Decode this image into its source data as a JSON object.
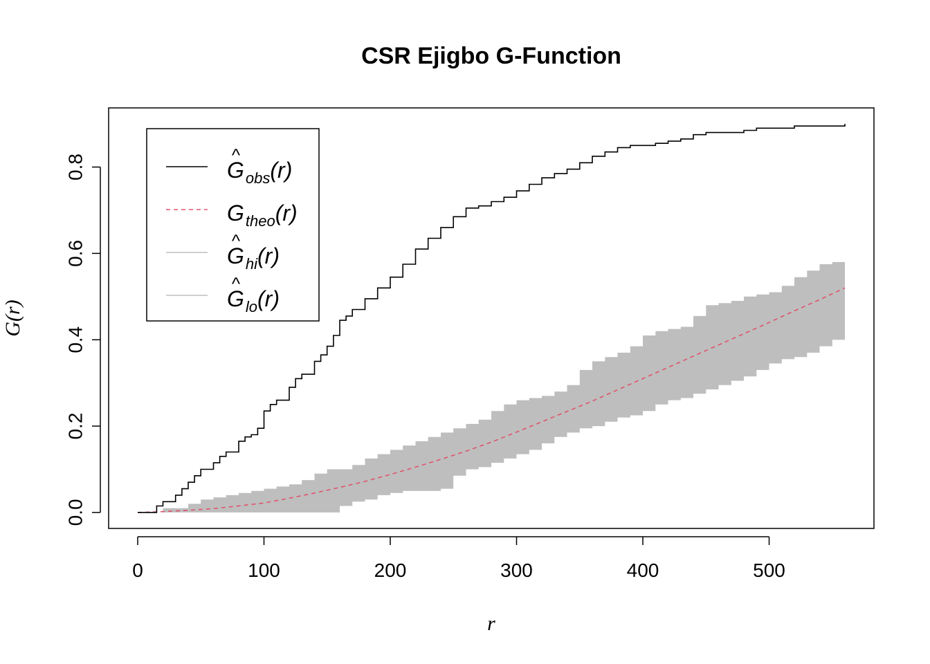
{
  "chart_data": {
    "type": "line",
    "title": "CSR Ejigbo G-Function",
    "xlabel": "r",
    "ylabel_main": "G",
    "ylabel_arg": "(r)",
    "xlim": [
      -23,
      583
    ],
    "ylim": [
      -0.037,
      0.937
    ],
    "xticks": [
      0,
      100,
      200,
      300,
      400,
      500
    ],
    "xtick_labels": [
      "0",
      "100",
      "200",
      "300",
      "400",
      "500"
    ],
    "yticks": [
      0.0,
      0.2,
      0.4,
      0.6,
      0.8
    ],
    "ytick_labels": [
      "0.0",
      "0.2",
      "0.4",
      "0.6",
      "0.8"
    ],
    "legend_position": "top-left",
    "legend": [
      {
        "main": "G",
        "hat": "^",
        "sub": "obs",
        "arg": "(r)",
        "style": "solid",
        "color": "#000000"
      },
      {
        "main": "G",
        "hat": "",
        "sub": "theo",
        "arg": "(r)",
        "style": "dashed",
        "color": "#DF536B"
      },
      {
        "main": "G",
        "hat": "^",
        "sub": "hi",
        "arg": "(r)",
        "style": "solid",
        "color": "#BEBEBE"
      },
      {
        "main": "G",
        "hat": "^",
        "sub": "lo",
        "arg": "(r)",
        "style": "solid",
        "color": "#BEBEBE"
      }
    ],
    "series": [
      {
        "name": "obs",
        "color": "#000000",
        "x": [
          0,
          10,
          15,
          20,
          30,
          35,
          40,
          45,
          50,
          60,
          65,
          70,
          80,
          85,
          90,
          95,
          100,
          105,
          110,
          120,
          125,
          130,
          140,
          145,
          150,
          155,
          160,
          165,
          170,
          180,
          190,
          200,
          210,
          220,
          230,
          240,
          250,
          260,
          270,
          280,
          290,
          300,
          310,
          320,
          330,
          340,
          350,
          360,
          370,
          380,
          390,
          400,
          410,
          420,
          430,
          440,
          450,
          460,
          480,
          490,
          510,
          520,
          540,
          560
        ],
        "y": [
          0.0,
          0.0,
          0.015,
          0.025,
          0.04,
          0.055,
          0.07,
          0.085,
          0.1,
          0.115,
          0.13,
          0.14,
          0.165,
          0.175,
          0.18,
          0.195,
          0.235,
          0.25,
          0.26,
          0.29,
          0.31,
          0.32,
          0.35,
          0.365,
          0.385,
          0.41,
          0.445,
          0.455,
          0.47,
          0.495,
          0.52,
          0.545,
          0.575,
          0.61,
          0.635,
          0.66,
          0.685,
          0.705,
          0.71,
          0.72,
          0.73,
          0.745,
          0.76,
          0.775,
          0.785,
          0.795,
          0.81,
          0.825,
          0.835,
          0.845,
          0.85,
          0.85,
          0.855,
          0.86,
          0.865,
          0.875,
          0.88,
          0.88,
          0.885,
          0.89,
          0.89,
          0.895,
          0.895,
          0.9
        ]
      },
      {
        "name": "theo",
        "color": "#DF536B",
        "x": [
          0,
          20,
          40,
          60,
          80,
          100,
          120,
          140,
          160,
          180,
          200,
          220,
          240,
          260,
          280,
          300,
          320,
          340,
          360,
          380,
          400,
          420,
          440,
          460,
          480,
          500,
          520,
          540,
          560
        ],
        "y": [
          0.0,
          0.002,
          0.005,
          0.009,
          0.015,
          0.022,
          0.033,
          0.045,
          0.058,
          0.072,
          0.088,
          0.105,
          0.123,
          0.142,
          0.163,
          0.186,
          0.21,
          0.234,
          0.258,
          0.284,
          0.31,
          0.336,
          0.362,
          0.388,
          0.414,
          0.44,
          0.467,
          0.493,
          0.52
        ]
      },
      {
        "name": "hi",
        "color": "#BEBEBE",
        "x": [
          0,
          10,
          20,
          30,
          40,
          50,
          60,
          70,
          80,
          90,
          100,
          110,
          120,
          130,
          140,
          150,
          160,
          170,
          180,
          190,
          200,
          210,
          220,
          230,
          240,
          250,
          260,
          270,
          280,
          290,
          300,
          310,
          320,
          330,
          340,
          350,
          360,
          370,
          380,
          390,
          400,
          410,
          420,
          430,
          440,
          450,
          460,
          470,
          480,
          490,
          500,
          510,
          520,
          530,
          540,
          550,
          560
        ],
        "y": [
          0.0,
          0.0,
          0.01,
          0.01,
          0.02,
          0.03,
          0.035,
          0.04,
          0.045,
          0.05,
          0.055,
          0.06,
          0.065,
          0.075,
          0.09,
          0.1,
          0.1,
          0.11,
          0.125,
          0.135,
          0.145,
          0.155,
          0.165,
          0.175,
          0.185,
          0.195,
          0.205,
          0.215,
          0.235,
          0.25,
          0.26,
          0.265,
          0.27,
          0.28,
          0.295,
          0.33,
          0.35,
          0.36,
          0.37,
          0.385,
          0.41,
          0.42,
          0.425,
          0.43,
          0.455,
          0.48,
          0.485,
          0.49,
          0.5,
          0.505,
          0.51,
          0.525,
          0.545,
          0.56,
          0.575,
          0.58,
          0.59
        ]
      },
      {
        "name": "lo",
        "color": "#BEBEBE",
        "x": [
          0,
          10,
          20,
          30,
          40,
          50,
          60,
          70,
          80,
          90,
          100,
          110,
          120,
          130,
          140,
          150,
          160,
          170,
          180,
          190,
          200,
          210,
          220,
          230,
          240,
          250,
          260,
          270,
          280,
          290,
          300,
          310,
          320,
          330,
          340,
          350,
          360,
          370,
          380,
          390,
          400,
          410,
          420,
          430,
          440,
          450,
          460,
          470,
          480,
          490,
          500,
          510,
          520,
          530,
          540,
          550,
          560
        ],
        "y": [
          0.0,
          0.0,
          0.0,
          0.0,
          0.0,
          0.0,
          0.0,
          0.0,
          0.0,
          0.0,
          0.0,
          0.0,
          0.0,
          0.0,
          0.0,
          0.0,
          0.015,
          0.025,
          0.03,
          0.04,
          0.045,
          0.05,
          0.05,
          0.05,
          0.055,
          0.085,
          0.1,
          0.105,
          0.115,
          0.125,
          0.135,
          0.145,
          0.16,
          0.175,
          0.185,
          0.195,
          0.2,
          0.21,
          0.22,
          0.225,
          0.235,
          0.25,
          0.26,
          0.265,
          0.275,
          0.285,
          0.295,
          0.305,
          0.315,
          0.33,
          0.345,
          0.355,
          0.36,
          0.37,
          0.385,
          0.4,
          0.425
        ]
      }
    ]
  }
}
